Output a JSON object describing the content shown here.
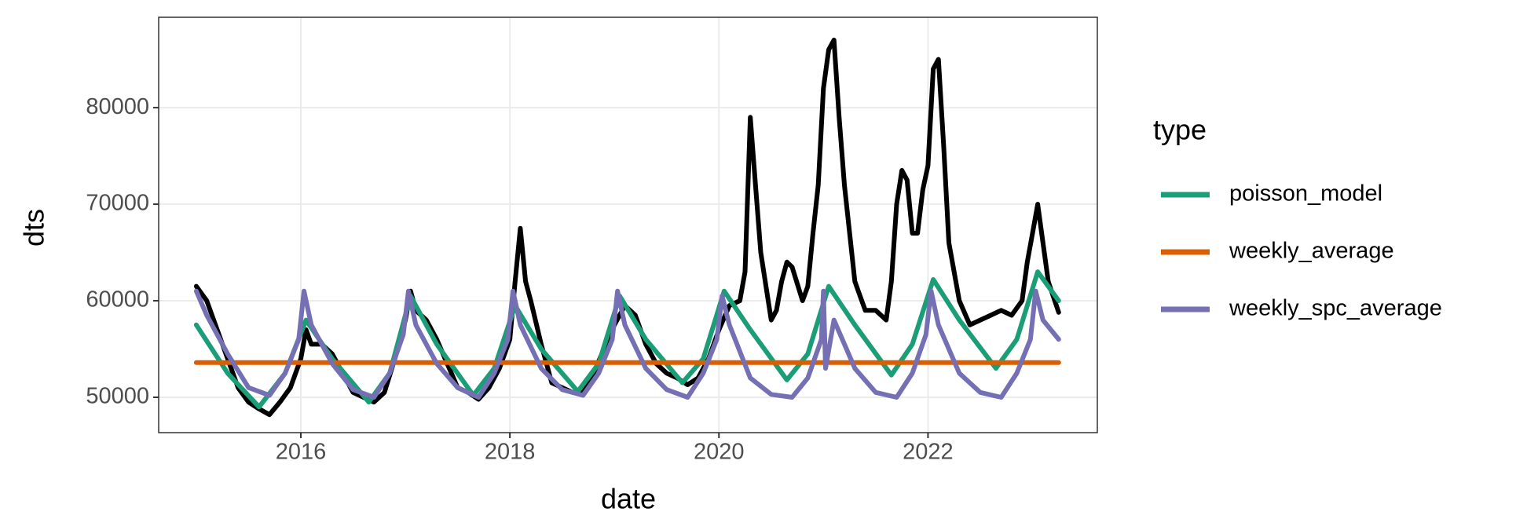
{
  "chart_data": {
    "type": "line",
    "xlabel": "date",
    "ylabel": "dts",
    "legend_title": "type",
    "legend": "right",
    "grid": true,
    "xlim": [
      2014.64,
      2023.62
    ],
    "ylim": [
      46340,
      89360
    ],
    "xticks": [
      2016,
      2018,
      2020,
      2022
    ],
    "yticks": [
      50000,
      60000,
      70000,
      80000
    ],
    "series": [
      {
        "color": "#000000",
        "x": [
          2015.0,
          2015.1,
          2015.2,
          2015.3,
          2015.4,
          2015.5,
          2015.6,
          2015.7,
          2015.8,
          2015.9,
          2016.0,
          2016.05,
          2016.1,
          2016.2,
          2016.3,
          2016.4,
          2016.5,
          2016.6,
          2016.7,
          2016.8,
          2016.9,
          2017.0,
          2017.05,
          2017.1,
          2017.2,
          2017.3,
          2017.4,
          2017.5,
          2017.6,
          2017.7,
          2017.8,
          2017.9,
          2018.0,
          2018.05,
          2018.1,
          2018.15,
          2018.2,
          2018.3,
          2018.4,
          2018.5,
          2018.6,
          2018.7,
          2018.8,
          2018.9,
          2019.0,
          2019.1,
          2019.2,
          2019.3,
          2019.4,
          2019.5,
          2019.6,
          2019.7,
          2019.8,
          2019.9,
          2020.0,
          2020.1,
          2020.2,
          2020.25,
          2020.3,
          2020.35,
          2020.4,
          2020.5,
          2020.55,
          2020.6,
          2020.65,
          2020.7,
          2020.8,
          2020.85,
          2020.9,
          2020.95,
          2021.0,
          2021.05,
          2021.1,
          2021.15,
          2021.2,
          2021.3,
          2021.35,
          2021.4,
          2021.5,
          2021.6,
          2021.65,
          2021.7,
          2021.75,
          2021.8,
          2021.85,
          2021.9,
          2021.95,
          2022.0,
          2022.05,
          2022.1,
          2022.15,
          2022.2,
          2022.3,
          2022.4,
          2022.5,
          2022.6,
          2022.7,
          2022.8,
          2022.9,
          2022.95,
          2023.0,
          2023.05,
          2023.1,
          2023.15,
          2023.25
        ],
        "values": [
          61500,
          60000,
          57000,
          54000,
          51000,
          49500,
          48800,
          48200,
          49500,
          51000,
          54000,
          57000,
          55500,
          55500,
          54500,
          52500,
          50500,
          50000,
          49500,
          50500,
          54000,
          58000,
          61000,
          59000,
          58000,
          56000,
          53500,
          51000,
          50500,
          49800,
          51000,
          53000,
          56000,
          62000,
          67500,
          62000,
          60000,
          55500,
          51500,
          51000,
          50500,
          50500,
          52500,
          55000,
          57500,
          59500,
          58500,
          55500,
          53500,
          52500,
          52000,
          51300,
          52000,
          54000,
          57000,
          59500,
          60000,
          63000,
          79000,
          72000,
          65000,
          58000,
          59000,
          62000,
          64000,
          63500,
          60000,
          61500,
          67000,
          72000,
          82000,
          86000,
          87000,
          79000,
          72000,
          62000,
          60500,
          59000,
          59000,
          58000,
          62000,
          70000,
          73500,
          72500,
          67000,
          67000,
          71500,
          74000,
          84000,
          85000,
          76000,
          66000,
          60000,
          57500,
          58000,
          58500,
          59000,
          58500,
          60000,
          64000,
          67000,
          70000,
          66000,
          62000,
          58800
        ]
      },
      {
        "name": "poisson_model",
        "color": "#1b9e77",
        "x": [
          2015.0,
          2015.3,
          2015.6,
          2015.85,
          2016.05,
          2016.3,
          2016.65,
          2016.85,
          2017.05,
          2017.3,
          2017.65,
          2017.85,
          2018.05,
          2018.3,
          2018.65,
          2018.85,
          2019.05,
          2019.3,
          2019.65,
          2019.85,
          2020.05,
          2020.3,
          2020.65,
          2020.85,
          2021.05,
          2021.3,
          2021.65,
          2021.85,
          2022.05,
          2022.3,
          2022.65,
          2022.85,
          2023.05,
          2023.25
        ],
        "values": [
          57500,
          52500,
          49000,
          52500,
          58000,
          54000,
          49500,
          52500,
          60500,
          55500,
          50200,
          53000,
          59500,
          55000,
          50600,
          53500,
          60500,
          56000,
          51500,
          54000,
          61000,
          57000,
          51800,
          54500,
          61500,
          57500,
          52300,
          55500,
          62200,
          58000,
          53000,
          56000,
          63000,
          60000
        ]
      },
      {
        "name": "weekly_average",
        "color": "#d95f02",
        "x": [
          2015.0,
          2023.25
        ],
        "values": [
          53600,
          53600
        ]
      },
      {
        "name": "weekly_spc_average",
        "color": "#7570b3",
        "x": [
          2015.0,
          2015.1,
          2015.3,
          2015.5,
          2015.7,
          2015.85,
          2015.98,
          2016.03,
          2016.1,
          2016.3,
          2016.5,
          2016.7,
          2016.85,
          2016.98,
          2017.03,
          2017.1,
          2017.3,
          2017.5,
          2017.7,
          2017.85,
          2017.98,
          2018.03,
          2018.1,
          2018.3,
          2018.5,
          2018.7,
          2018.85,
          2018.98,
          2019.03,
          2019.1,
          2019.3,
          2019.5,
          2019.7,
          2019.85,
          2019.98,
          2020.03,
          2020.1,
          2020.3,
          2020.5,
          2020.7,
          2020.85,
          2020.98,
          2021.0,
          2021.02,
          2021.1,
          2021.3,
          2021.5,
          2021.7,
          2021.85,
          2021.98,
          2022.03,
          2022.1,
          2022.3,
          2022.5,
          2022.7,
          2022.85,
          2022.98,
          2023.03,
          2023.1,
          2023.25
        ],
        "values": [
          61000,
          58500,
          54500,
          51000,
          50200,
          52500,
          56000,
          61000,
          57500,
          53500,
          50800,
          50000,
          52500,
          56500,
          61000,
          57500,
          53500,
          51000,
          50000,
          52500,
          56000,
          61000,
          57500,
          53000,
          50800,
          50200,
          52500,
          56000,
          61000,
          57500,
          53000,
          50800,
          50000,
          52500,
          56000,
          60500,
          57500,
          52000,
          50300,
          50000,
          52000,
          56000,
          61000,
          53000,
          58000,
          53000,
          50500,
          50000,
          52500,
          56500,
          61000,
          57500,
          52500,
          50500,
          50000,
          52500,
          56000,
          61000,
          58000,
          56000
        ]
      }
    ]
  }
}
